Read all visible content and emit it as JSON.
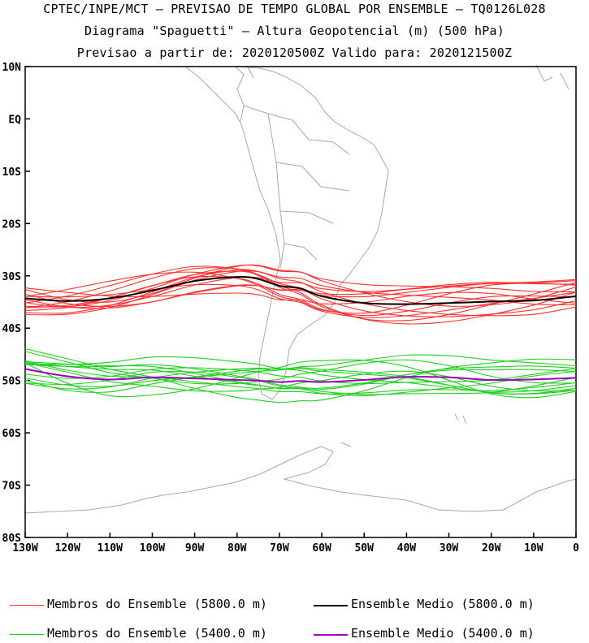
{
  "header": {
    "line1": "CPTEC/INPE/MCT – PREVISAO DE TEMPO GLOBAL POR ENSEMBLE – TQ0126L028",
    "line2": "Diagrama \"Spaguetti\" – Altura Geopotencial (m) (500 hPa)",
    "line3": "Previsao a partir de: 2020120500Z  Valido para: 2020121500Z"
  },
  "axes": {
    "lat_labels": [
      "10N",
      "EQ",
      "10S",
      "20S",
      "30S",
      "40S",
      "50S",
      "60S",
      "70S",
      "80S"
    ],
    "lon_labels": [
      "130W",
      "120W",
      "110W",
      "100W",
      "90W",
      "80W",
      "70W",
      "60W",
      "50W",
      "40W",
      "30W",
      "20W",
      "10W",
      "0"
    ]
  },
  "colors": {
    "member_5800": "#ff3030",
    "mean_5800": "#000000",
    "member_5400": "#20d020",
    "mean_5400": "#a000c0",
    "coast": "#a8a8a8"
  },
  "legend": [
    {
      "label": "Membros do Ensemble (5800.0 m)",
      "color": "#ff3030"
    },
    {
      "label": "Ensemble Medio (5800.0 m)",
      "color": "#000000"
    },
    {
      "label": "Membros do Ensemble (5400.0 m)",
      "color": "#20d020"
    },
    {
      "label": "Ensemble Medio (5400.0 m)",
      "color": "#a000c0"
    }
  ],
  "chart_data": {
    "type": "line",
    "xlim": [
      -130,
      0
    ],
    "ylim": [
      -80,
      10
    ],
    "x": [
      -130,
      -120,
      -110,
      -100,
      -90,
      -80,
      -75,
      -70,
      -65,
      -60,
      -50,
      -40,
      -30,
      -20,
      -10,
      0
    ],
    "series": [
      {
        "name": "Ensemble Medio (5800.0 m)",
        "values": [
          -34.3,
          -34.8,
          -34.3,
          -32.8,
          -31.0,
          -30.2,
          -30.6,
          -31.9,
          -32.4,
          -33.9,
          -35.2,
          -35.4,
          -35.2,
          -34.9,
          -34.7,
          -33.9
        ]
      },
      {
        "name": "Ensemble Medio (5400.0 m)",
        "values": [
          -47.8,
          -49.2,
          -49.8,
          -49.4,
          -49.6,
          -49.9,
          -50.0,
          -50.3,
          -50.1,
          -50.3,
          -49.9,
          -49.3,
          -49.4,
          -49.9,
          -49.8,
          -49.5
        ]
      }
    ]
  }
}
